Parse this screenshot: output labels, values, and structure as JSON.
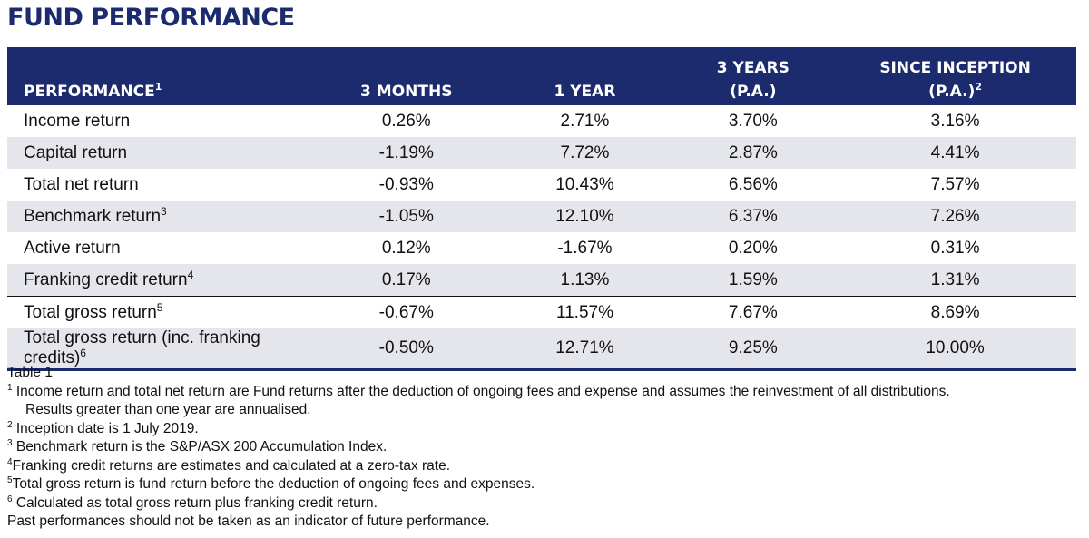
{
  "title": "FUND PERFORMANCE",
  "table": {
    "headers": {
      "performance": "PERFORMANCE",
      "performance_sup": "1",
      "m3": "3 MONTHS",
      "y1": "1 YEAR",
      "y3_line1": "3 YEARS",
      "y3_line2": "(P.A.)",
      "si_line1": "SINCE INCEPTION",
      "si_line2": "(P.A.)",
      "si_sup": "2"
    },
    "rows": [
      {
        "label": "Income return",
        "sup": "",
        "m3": "0.26%",
        "y1": "2.71%",
        "y3": "3.70%",
        "si": "3.16%"
      },
      {
        "label": "Capital return",
        "sup": "",
        "m3": "-1.19%",
        "y1": "7.72%",
        "y3": "2.87%",
        "si": "4.41%"
      },
      {
        "label": "Total net return",
        "sup": "",
        "m3": "-0.93%",
        "y1": "10.43%",
        "y3": "6.56%",
        "si": "7.57%"
      },
      {
        "label": "Benchmark return",
        "sup": "3",
        "m3": "-1.05%",
        "y1": "12.10%",
        "y3": "6.37%",
        "si": "7.26%"
      },
      {
        "label": "Active return",
        "sup": "",
        "m3": "0.12%",
        "y1": "-1.67%",
        "y3": "0.20%",
        "si": "0.31%"
      },
      {
        "label": "Franking credit return",
        "sup": "4",
        "m3": "0.17%",
        "y1": "1.13%",
        "y3": "1.59%",
        "si": "1.31%"
      },
      {
        "label": "Total gross return",
        "sup": "5",
        "m3": "-0.67%",
        "y1": "11.57%",
        "y3": "7.67%",
        "si": "8.69%"
      },
      {
        "label": "Total gross return (inc. franking credits)",
        "sup": "6",
        "m3": "-0.50%",
        "y1": "12.71%",
        "y3": "9.25%",
        "si": "10.00%"
      }
    ]
  },
  "notes": {
    "caption": "Table 1",
    "n1_sup": "1",
    "n1_line1": "Income return and total net return are Fund returns after the deduction of ongoing fees and expense and assumes the reinvestment of all distributions.",
    "n1_line2": "Results greater than one year are annualised.",
    "n2_sup": "2",
    "n2": "Inception date is 1 July 2019.",
    "n3_sup": "3",
    "n3": "Benchmark return is the S&P/ASX 200 Accumulation Index.",
    "n4_sup": "4",
    "n4": "Franking credit returns are estimates and calculated at a zero-tax rate.",
    "n5_sup": "5",
    "n5": "Total gross return is fund return before the deduction of ongoing fees and expenses.",
    "n6_sup": "6",
    "n6": "Calculated as total gross return plus franking credit return.",
    "disclaimer": "Past performances should not be taken as an indicator of future performance."
  },
  "colors": {
    "header_bg": "#1c2a6e",
    "title": "#1c2a6e",
    "row_shade": "#e5e6eb"
  }
}
